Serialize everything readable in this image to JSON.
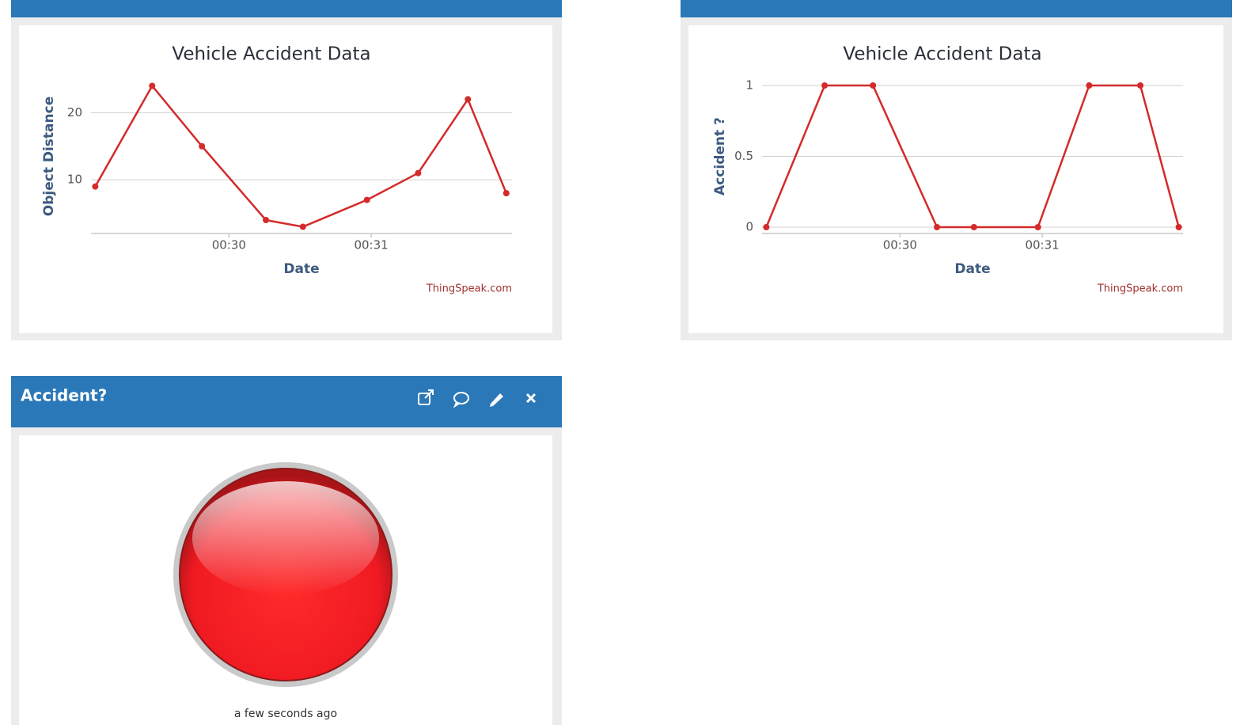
{
  "chart_data": [
    {
      "type": "line",
      "title": "Vehicle Accident Data",
      "x_label": "Date",
      "y_label": "Object Distance",
      "credit": "ThingSpeak.com",
      "x": [
        29.06,
        29.46,
        29.81,
        30.26,
        30.52,
        30.97,
        31.33,
        31.68,
        31.95
      ],
      "series": [
        {
          "name": "Object Distance",
          "color": "#d42a2a",
          "values": [
            9,
            24,
            15,
            4,
            3,
            7,
            11,
            22,
            8
          ]
        }
      ],
      "xlim": [
        29.03,
        31.99
      ],
      "xticks": [
        {
          "value": 30,
          "label": "00:30"
        },
        {
          "value": 31,
          "label": "00:31"
        }
      ],
      "ylim": [
        2,
        25
      ],
      "yticks": [
        10,
        20
      ],
      "grid": true
    },
    {
      "type": "line",
      "title": "Vehicle Accident Data",
      "x_label": "Date",
      "y_label": "Accident ?",
      "credit": "ThingSpeak.com",
      "x": [
        29.06,
        29.47,
        29.81,
        30.26,
        30.52,
        30.97,
        31.33,
        31.69,
        31.96
      ],
      "series": [
        {
          "name": "Accident ?",
          "color": "#d42a2a",
          "values": [
            0,
            1,
            1,
            0,
            0,
            0,
            1,
            1,
            0
          ]
        }
      ],
      "xlim": [
        29.03,
        31.99
      ],
      "xticks": [
        {
          "value": 30,
          "label": "00:30"
        },
        {
          "value": 31,
          "label": "00:31"
        }
      ],
      "ylim": [
        0,
        1
      ],
      "yticks": [
        0,
        0.5,
        1
      ],
      "grid": true
    }
  ],
  "widget": {
    "title": "Accident?",
    "timestamp": "a few seconds ago"
  }
}
